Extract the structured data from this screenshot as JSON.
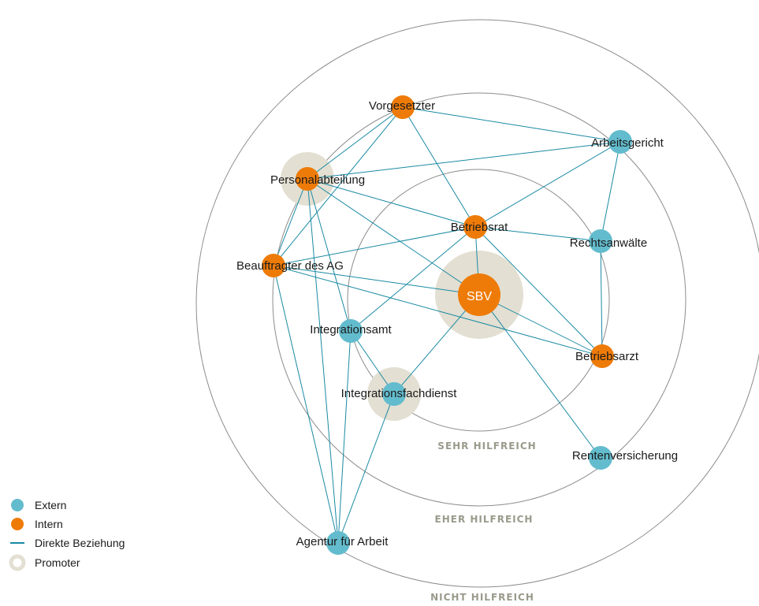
{
  "colors": {
    "extern": "#63bccd",
    "intern": "#ee7b08",
    "edge": "#1a8aa3",
    "promoter": "#e3dfd2",
    "ring": "#8c8c8c"
  },
  "zones": {
    "sehr": "SEHR HILFREICH",
    "eher": "EHER HILFREICH",
    "nicht": "NICHT HILFREICH"
  },
  "center": {
    "label": "SBV",
    "type": "intern",
    "promoter": true
  },
  "nodes": [
    {
      "id": "vorgesetzter",
      "label": "Vorgesetzter",
      "type": "intern",
      "promoter": false
    },
    {
      "id": "arbeitsgericht",
      "label": "Arbeitsgericht",
      "type": "extern",
      "promoter": false
    },
    {
      "id": "personalabteilung",
      "label": "Personalabteilung",
      "type": "intern",
      "promoter": true
    },
    {
      "id": "betriebsrat",
      "label": "Betriebsrat",
      "type": "intern",
      "promoter": false
    },
    {
      "id": "rechtsanwaelte",
      "label": "Rechtsanwälte",
      "type": "extern",
      "promoter": false
    },
    {
      "id": "beauftragter",
      "label": "Beauftragter des AG",
      "type": "intern",
      "promoter": false
    },
    {
      "id": "integrationsamt",
      "label": "Integrationsamt",
      "type": "extern",
      "promoter": false
    },
    {
      "id": "betriebsarzt",
      "label": "Betriebsarzt",
      "type": "intern",
      "promoter": false
    },
    {
      "id": "integrationsfachdienst",
      "label": "Integrationsfachdienst",
      "type": "extern",
      "promoter": true
    },
    {
      "id": "rentenversicherung",
      "label": "Rentenversicherung",
      "type": "extern",
      "promoter": false
    },
    {
      "id": "agentur",
      "label": "Agentur für Arbeit",
      "type": "extern",
      "promoter": false
    }
  ],
  "edges": [
    [
      "vorgesetzter",
      "personalabteilung"
    ],
    [
      "vorgesetzter",
      "arbeitsgericht"
    ],
    [
      "vorgesetzter",
      "betriebsrat"
    ],
    [
      "personalabteilung",
      "arbeitsgericht"
    ],
    [
      "personalabteilung",
      "betriebsrat"
    ],
    [
      "personalabteilung",
      "sbv"
    ],
    [
      "personalabteilung",
      "beauftragter"
    ],
    [
      "personalabteilung",
      "agentur"
    ],
    [
      "personalabteilung",
      "integrationsamt"
    ],
    [
      "vorgesetzter",
      "beauftragter"
    ],
    [
      "arbeitsgericht",
      "betriebsrat"
    ],
    [
      "arbeitsgericht",
      "rechtsanwaelte"
    ],
    [
      "betriebsrat",
      "rechtsanwaelte"
    ],
    [
      "betriebsrat",
      "beauftragter"
    ],
    [
      "betriebsrat",
      "sbv"
    ],
    [
      "betriebsrat",
      "integrationsamt"
    ],
    [
      "betriebsrat",
      "betriebsarzt"
    ],
    [
      "beauftragter",
      "sbv"
    ],
    [
      "beauftragter",
      "agentur"
    ],
    [
      "beauftragter",
      "betriebsarzt"
    ],
    [
      "sbv",
      "integrationsfachdienst"
    ],
    [
      "sbv",
      "betriebsarzt"
    ],
    [
      "sbv",
      "rentenversicherung"
    ],
    [
      "rechtsanwaelte",
      "betriebsarzt"
    ],
    [
      "integrationsamt",
      "integrationsfachdienst"
    ],
    [
      "integrationsamt",
      "agentur"
    ],
    [
      "integrationsfachdienst",
      "agentur"
    ]
  ],
  "legend": {
    "extern": "Extern",
    "intern": "Intern",
    "relation": "Direkte Beziehung",
    "promoter": "Promoter"
  }
}
